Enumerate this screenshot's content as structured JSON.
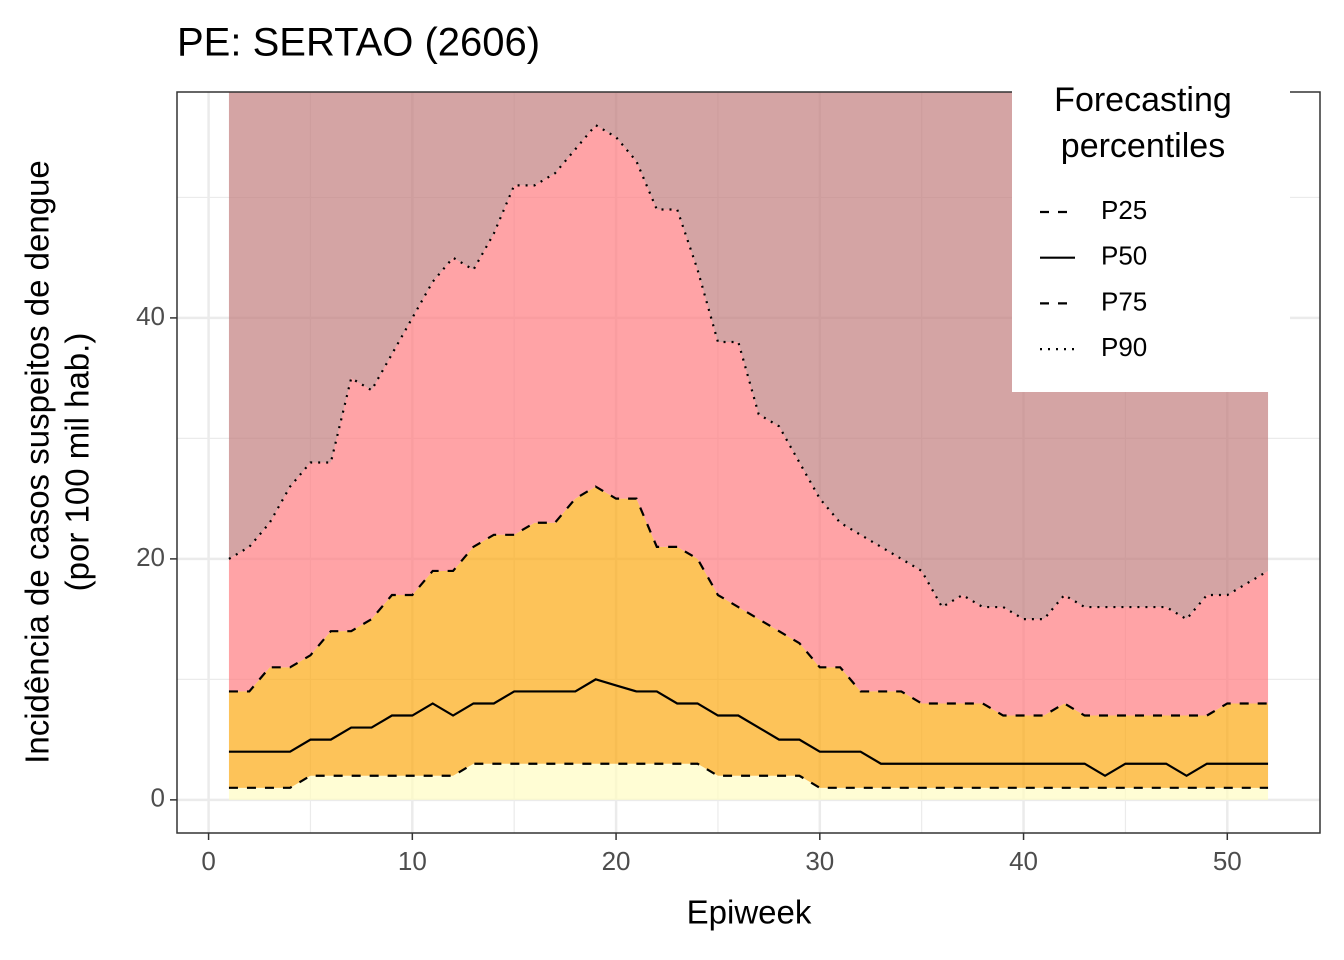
{
  "chart_data": {
    "type": "line",
    "title": "PE: SERTAO (2606)",
    "xlabel": "Epiweek",
    "ylabel": [
      "Incidência de casos suspeitos de dengue",
      "(por 100 mil hab.)"
    ],
    "legend_title": [
      "Forecasting",
      "percentiles"
    ],
    "legend_position": "top-right",
    "grid": true,
    "xlim": [
      -1.55,
      54.55
    ],
    "xticks": [
      0,
      10,
      20,
      30,
      40,
      50
    ],
    "ylim": [
      -2.75,
      58.75
    ],
    "yticks": [
      0,
      20,
      40
    ],
    "band_colors": [
      "#fffcc2",
      "#fca913",
      "#ff7c80",
      "#c27e7e"
    ],
    "x": [
      1,
      2,
      3,
      4,
      5,
      6,
      7,
      8,
      9,
      10,
      11,
      12,
      13,
      14,
      15,
      16,
      17,
      18,
      19,
      20,
      21,
      22,
      23,
      24,
      25,
      26,
      27,
      28,
      29,
      30,
      31,
      32,
      33,
      34,
      35,
      36,
      37,
      38,
      39,
      40,
      41,
      42,
      43,
      44,
      45,
      46,
      47,
      48,
      49,
      50,
      51,
      52
    ],
    "series": [
      {
        "name": "P25",
        "color": "#000000",
        "linetype": "dashed",
        "values": [
          1,
          1,
          1,
          1,
          2,
          2,
          2,
          2,
          2,
          2,
          2,
          2,
          3,
          3,
          3,
          3,
          3,
          3,
          3,
          3,
          3,
          3,
          3,
          3,
          2,
          2,
          2,
          2,
          2,
          1,
          1,
          1,
          1,
          1,
          1,
          1,
          1,
          1,
          1,
          1,
          1,
          1,
          1,
          1,
          1,
          1,
          1,
          1,
          1,
          1,
          1,
          1
        ]
      },
      {
        "name": "P50",
        "color": "#000000",
        "linetype": "solid",
        "values": [
          4,
          4,
          4,
          4,
          5,
          5,
          6,
          6,
          7,
          7,
          8,
          7,
          8,
          8,
          9,
          9,
          9,
          9,
          10,
          9.5,
          9,
          9,
          8,
          8,
          7,
          7,
          6,
          5,
          5,
          4,
          4,
          4,
          3,
          3,
          3,
          3,
          3,
          3,
          3,
          3,
          3,
          3,
          3,
          2,
          3,
          3,
          3,
          2,
          3,
          3,
          3,
          3
        ]
      },
      {
        "name": "P75",
        "color": "#000000",
        "linetype": "dashed",
        "values": [
          9,
          9,
          11,
          11,
          12,
          14,
          14,
          15,
          17,
          17,
          19,
          19,
          21,
          22,
          22,
          23,
          23,
          25,
          26,
          25,
          25,
          21,
          21,
          20,
          17,
          16,
          15,
          14,
          13,
          11,
          11,
          9,
          9,
          9,
          8,
          8,
          8,
          8,
          7,
          7,
          7,
          8,
          7,
          7,
          7,
          7,
          7,
          7,
          7,
          8,
          8,
          8
        ]
      },
      {
        "name": "P90",
        "color": "#000000",
        "linetype": "dotted",
        "values": [
          20,
          21,
          23,
          26,
          28,
          28,
          35,
          34,
          37,
          40,
          43,
          45,
          44,
          47,
          51,
          51,
          52,
          54,
          56,
          55,
          53,
          49,
          49,
          44,
          38,
          38,
          32,
          31,
          28,
          25,
          23,
          22,
          21,
          20,
          19,
          16,
          17,
          16,
          16,
          15,
          15,
          17,
          16,
          16,
          16,
          16,
          16,
          15,
          17,
          17,
          18,
          19
        ]
      }
    ]
  }
}
